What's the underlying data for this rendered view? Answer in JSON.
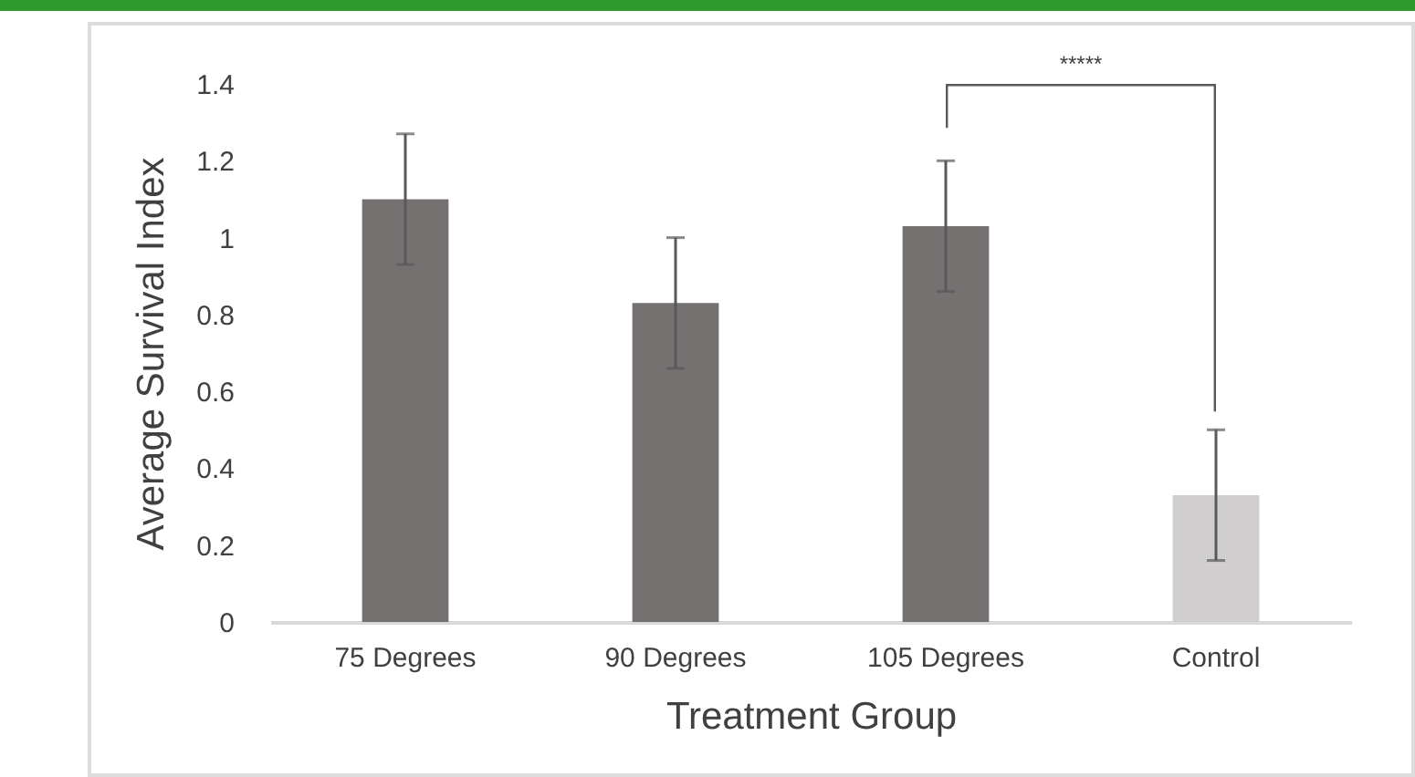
{
  "chart_data": {
    "type": "bar",
    "xlabel": "Treatment Group",
    "ylabel": "Average Survival Index",
    "categories": [
      "75 Degrees",
      "90 Degrees",
      "105 Degrees",
      "Control"
    ],
    "values": [
      1.1,
      0.83,
      1.03,
      0.33
    ],
    "errors": [
      0.17,
      0.17,
      0.17,
      0.17
    ],
    "colors": [
      "#767171",
      "#767171",
      "#767171",
      "#d0cece"
    ],
    "ylim": [
      0,
      1.4
    ],
    "yticks": [
      0,
      0.2,
      0.4,
      0.6,
      0.8,
      1,
      1.2,
      1.4
    ],
    "annotations": [
      "*****"
    ]
  }
}
